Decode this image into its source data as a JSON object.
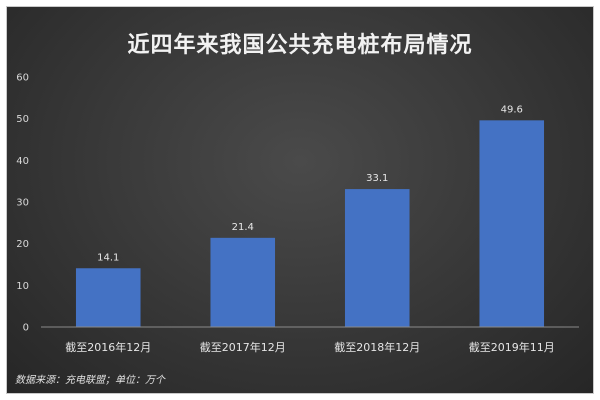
{
  "chart_data": {
    "type": "bar",
    "title": "近四年来我国公共充电桩布局情况",
    "categories": [
      "截至2016年12月",
      "截至2017年12月",
      "截至2018年12月",
      "截至2019年11月"
    ],
    "values": [
      14.1,
      21.4,
      33.1,
      49.6
    ],
    "value_labels": [
      "14.1",
      "21.4",
      "33.1",
      "49.6"
    ],
    "yticks": [
      "0",
      "10",
      "20",
      "30",
      "40",
      "50",
      "60"
    ],
    "ylim": [
      0,
      60
    ],
    "xlabel": "",
    "ylabel": "",
    "grid": false,
    "legend": "none",
    "bar_color": "#4472c4",
    "note": "数据来源：充电联盟；单位：万个"
  }
}
